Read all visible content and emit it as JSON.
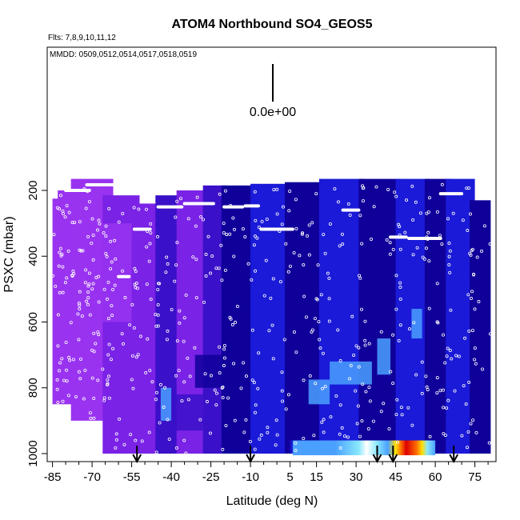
{
  "chart_data": {
    "type": "heatmap",
    "title": "ATOM4 Northbound SO4_GEOS5",
    "flights_text": "Flts: 7,8,9,10,11,12",
    "dates_text": "MMDD: 0509,0512,0514,0517,0518,0519",
    "scale_label": "0.0e+00",
    "xlabel": "Latitude (deg N)",
    "ylabel": "PSXC (mbar)",
    "xlim": [
      -87,
      83
    ],
    "ylim": [
      1010,
      0
    ],
    "x_ticks": [
      -85,
      -70,
      -55,
      -40,
      -25,
      -10,
      5,
      15,
      30,
      45,
      60,
      75
    ],
    "x_tick_labels": [
      "-85",
      "-70",
      "-55",
      "-40",
      "-25",
      "-10",
      "5",
      "15",
      "30",
      "45",
      "60",
      "75"
    ],
    "x_minor_ticks": [
      -80,
      -75,
      -65,
      -60,
      -50,
      -45,
      -35,
      -30,
      -20,
      -15,
      -5,
      0,
      10,
      20,
      25,
      35,
      40,
      50,
      55,
      65,
      70,
      80
    ],
    "y_ticks": [
      200,
      400,
      600,
      800,
      1000
    ],
    "y_tick_labels": [
      "200",
      "400",
      "600",
      "800",
      "1000"
    ],
    "arrow_latitudes": [
      -53,
      -10,
      38,
      44,
      67
    ],
    "colors": {
      "purple_light": "#9933f0",
      "purple": "#7a22e6",
      "indigo": "#3a10c8",
      "blue_dark": "#10009a",
      "blue": "#1a1ad8",
      "sky": "#4aa0ff",
      "cyan": "#88e8ff",
      "yellow": "#ffe000",
      "orange": "#ff7000",
      "red": "#dd0000"
    },
    "columns": [
      {
        "lat_min": -85,
        "lat_max": -62,
        "p_top": 225,
        "p_bottom": 850,
        "color": "purple_light"
      },
      {
        "lat_min": -83,
        "lat_max": -76,
        "p_top": 200,
        "p_bottom": 820,
        "color": "purple_light"
      },
      {
        "lat_min": -78,
        "lat_max": -62,
        "p_top": 165,
        "p_bottom": 900,
        "color": "purple_light"
      },
      {
        "lat_min": -66,
        "lat_max": -52,
        "p_top": 215,
        "p_bottom": 1000,
        "color": "purple"
      },
      {
        "lat_min": -54,
        "lat_max": -44,
        "p_top": 240,
        "p_bottom": 1000,
        "color": "purple"
      },
      {
        "lat_min": -46,
        "lat_max": -36,
        "p_top": 215,
        "p_bottom": 1000,
        "color": "indigo"
      },
      {
        "lat_min": -38,
        "lat_max": -26,
        "p_top": 200,
        "p_bottom": 1000,
        "color": "purple"
      },
      {
        "lat_min": -28,
        "lat_max": -19,
        "p_top": 185,
        "p_bottom": 1000,
        "color": "indigo"
      },
      {
        "lat_min": -21,
        "lat_max": -8,
        "p_top": 185,
        "p_bottom": 1000,
        "color": "blue_dark"
      },
      {
        "lat_min": -10,
        "lat_max": 5,
        "p_top": 180,
        "p_bottom": 1000,
        "color": "blue"
      },
      {
        "lat_min": 3,
        "lat_max": 18,
        "p_top": 175,
        "p_bottom": 1000,
        "color": "blue_dark"
      },
      {
        "lat_min": 16,
        "lat_max": 33,
        "p_top": 165,
        "p_bottom": 1000,
        "color": "blue"
      },
      {
        "lat_min": 31,
        "lat_max": 47,
        "p_top": 165,
        "p_bottom": 1000,
        "color": "blue_dark"
      },
      {
        "lat_min": 45,
        "lat_max": 58,
        "p_top": 165,
        "p_bottom": 1000,
        "color": "blue"
      },
      {
        "lat_min": 56,
        "lat_max": 66,
        "p_top": 165,
        "p_bottom": 1000,
        "color": "blue_dark"
      },
      {
        "lat_min": 64,
        "lat_max": 75,
        "p_top": 165,
        "p_bottom": 1000,
        "color": "blue"
      },
      {
        "lat_min": 73,
        "lat_max": 81,
        "p_top": 230,
        "p_bottom": 1000,
        "color": "blue_dark"
      }
    ],
    "patches": [
      {
        "lat_min": -72,
        "lat_max": -55,
        "p_top": 300,
        "p_bottom": 600,
        "color": "purple_light"
      },
      {
        "lat_min": -40,
        "lat_max": -28,
        "p_top": 820,
        "p_bottom": 930,
        "color": "indigo"
      },
      {
        "lat_min": -44,
        "lat_max": -40,
        "p_top": 800,
        "p_bottom": 900,
        "color": "sky"
      },
      {
        "lat_min": -31,
        "lat_max": -20,
        "p_top": 700,
        "p_bottom": 800,
        "color": "blue_dark"
      },
      {
        "lat_min": 12,
        "lat_max": 20,
        "p_top": 775,
        "p_bottom": 850,
        "color": "sky"
      },
      {
        "lat_min": 20,
        "lat_max": 36,
        "p_top": 720,
        "p_bottom": 790,
        "color": "sky"
      },
      {
        "lat_min": 51,
        "lat_max": 55,
        "p_top": 560,
        "p_bottom": 650,
        "color": "sky"
      },
      {
        "lat_min": 38,
        "lat_max": 43,
        "p_top": 650,
        "p_bottom": 760,
        "color": "sky"
      },
      {
        "lat_min": 5,
        "lat_max": 60,
        "p_top": 960,
        "p_bottom": 1000,
        "color": "blue"
      }
    ],
    "surface_gradient": [
      {
        "lat": 6,
        "color": "sky"
      },
      {
        "lat": 22,
        "color": "sky"
      },
      {
        "lat": 31,
        "color": "cyan"
      },
      {
        "lat": 34,
        "color": "#ffffff"
      },
      {
        "lat": 38,
        "color": "cyan"
      },
      {
        "lat": 42,
        "color": "sky"
      },
      {
        "lat": 45,
        "color": "yellow"
      },
      {
        "lat": 47,
        "color": "orange"
      },
      {
        "lat": 49,
        "color": "red"
      },
      {
        "lat": 53,
        "color": "orange"
      },
      {
        "lat": 55,
        "color": "yellow"
      },
      {
        "lat": 57,
        "color": "cyan"
      },
      {
        "lat": 60,
        "color": "sky"
      }
    ],
    "top_segments": [
      {
        "lat_min": -72,
        "lat_max": -60,
        "p": 183
      },
      {
        "lat_min": -80,
        "lat_max": -71,
        "p": 200
      },
      {
        "lat_min": -45,
        "lat_max": -36,
        "p": 250
      },
      {
        "lat_min": -35,
        "lat_max": -24,
        "p": 240
      },
      {
        "lat_min": -20,
        "lat_max": -13,
        "p": 250
      },
      {
        "lat_min": -12,
        "lat_max": -7,
        "p": 247
      },
      {
        "lat_min": -54,
        "lat_max": -48,
        "p": 318
      },
      {
        "lat_min": -6,
        "lat_max": 6,
        "p": 318
      },
      {
        "lat_min": 25,
        "lat_max": 31,
        "p": 260
      },
      {
        "lat_min": 50,
        "lat_max": 62,
        "p": 346
      },
      {
        "lat_min": 43,
        "lat_max": 49,
        "p": 342
      },
      {
        "lat_min": 62,
        "lat_max": 70,
        "p": 210
      },
      {
        "lat_min": -60,
        "lat_max": -56,
        "p": 462
      }
    ]
  }
}
